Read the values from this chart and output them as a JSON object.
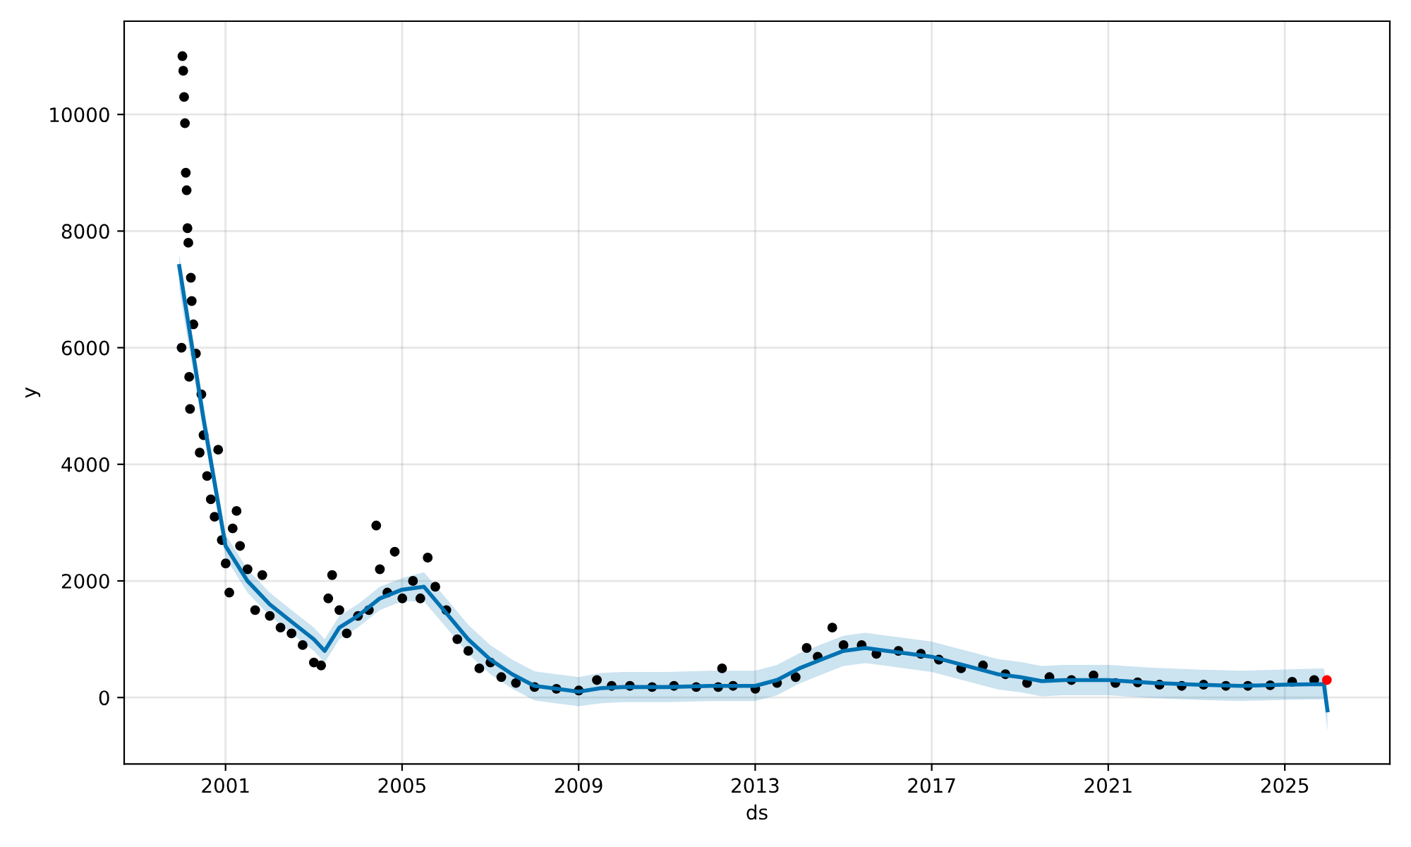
{
  "chart_data": {
    "type": "line",
    "xlabel": "ds",
    "ylabel": "y",
    "grid": true,
    "xlim": [
      "1998-09-15",
      "2027-05-20"
    ],
    "ylim": [
      -1140,
      11600
    ],
    "xticks": [
      {
        "value": "2001-01-01",
        "label": "2001"
      },
      {
        "value": "2005-01-01",
        "label": "2005"
      },
      {
        "value": "2009-01-01",
        "label": "2009"
      },
      {
        "value": "2013-01-01",
        "label": "2013"
      },
      {
        "value": "2017-01-01",
        "label": "2017"
      },
      {
        "value": "2021-01-01",
        "label": "2021"
      },
      {
        "value": "2025-01-01",
        "label": "2025"
      }
    ],
    "yticks": [
      0,
      2000,
      4000,
      6000,
      8000,
      10000
    ],
    "series": [
      {
        "type": "scatter",
        "marker": "circle",
        "color": "#000000",
        "x": [
          "2000-01-03",
          "2000-01-10",
          "2000-01-17",
          "2000-01-24",
          "2000-01-31",
          "2000-02-07",
          "2000-02-14",
          "2000-02-21",
          "2000-02-28",
          "2000-03-06",
          "2000-03-13",
          "2000-03-20",
          "2000-03-27",
          "2000-04-10",
          "2000-05-01",
          "2000-06-01",
          "2000-06-15",
          "2000-07-03",
          "2000-08-01",
          "2000-09-01",
          "2000-10-02",
          "2000-11-01",
          "2000-12-01",
          "2001-01-02",
          "2001-02-01",
          "2001-03-01",
          "2001-04-02",
          "2001-05-01",
          "2001-07-02",
          "2001-09-03",
          "2001-11-01",
          "2002-01-02",
          "2002-04-01",
          "2002-07-01",
          "2002-10-01",
          "2003-01-02",
          "2003-03-03",
          "2003-05-01",
          "2003-06-02",
          "2003-08-01",
          "2003-10-01",
          "2004-01-02",
          "2004-04-01",
          "2004-06-01",
          "2004-07-01",
          "2004-09-01",
          "2004-11-01",
          "2005-01-03",
          "2005-04-01",
          "2005-06-01",
          "2005-08-01",
          "2005-10-03",
          "2006-01-02",
          "2006-04-03",
          "2006-07-03",
          "2006-10-02",
          "2007-01-02",
          "2007-04-02",
          "2007-08-01",
          "2008-01-02",
          "2008-07-01",
          "2009-01-02",
          "2009-06-01",
          "2009-10-01",
          "2010-03-01",
          "2010-09-01",
          "2011-03-01",
          "2011-09-01",
          "2012-03-01",
          "2012-04-02",
          "2012-07-02",
          "2013-01-02",
          "2013-07-01",
          "2013-12-02",
          "2014-03-03",
          "2014-06-02",
          "2014-10-01",
          "2015-01-02",
          "2015-06-01",
          "2015-10-01",
          "2016-04-01",
          "2016-10-03",
          "2017-03-01",
          "2017-09-01",
          "2018-03-01",
          "2018-09-03",
          "2019-03-01",
          "2019-09-02",
          "2020-03-02",
          "2020-09-01",
          "2021-03-01",
          "2021-09-01",
          "2022-03-01",
          "2022-09-01",
          "2023-03-01",
          "2023-09-01",
          "2024-03-01",
          "2024-09-02",
          "2025-03-03",
          "2025-09-01"
        ],
        "values": [
          6000,
          11000,
          10750,
          10300,
          9850,
          9000,
          8700,
          8050,
          7800,
          5500,
          4950,
          7200,
          6800,
          6400,
          5900,
          4200,
          5200,
          4500,
          3800,
          3400,
          3100,
          4250,
          2700,
          2300,
          1800,
          2900,
          3200,
          2600,
          2200,
          1500,
          2100,
          1400,
          1200,
          1100,
          900,
          600,
          550,
          1700,
          2100,
          1500,
          1100,
          1400,
          1500,
          2950,
          2200,
          1800,
          2500,
          1700,
          2000,
          1700,
          2400,
          1900,
          1500,
          1000,
          800,
          500,
          600,
          350,
          250,
          180,
          150,
          120,
          300,
          200,
          200,
          180,
          200,
          180,
          180,
          500,
          200,
          150,
          250,
          350,
          850,
          700,
          1200,
          900,
          900,
          750,
          800,
          750,
          650,
          500,
          550,
          400,
          250,
          350,
          300,
          380,
          250,
          260,
          220,
          200,
          220,
          200,
          200,
          210,
          270,
          300
        ]
      },
      {
        "color": "#0072b2",
        "x": [
          "1999-12-15",
          "2000-07-01",
          "2001-01-01",
          "2001-07-01",
          "2002-01-01",
          "2002-07-01",
          "2003-01-01",
          "2003-04-01",
          "2003-08-01",
          "2004-01-01",
          "2004-07-01",
          "2005-01-01",
          "2005-07-01",
          "2006-01-01",
          "2006-07-01",
          "2007-01-01",
          "2007-07-01",
          "2008-01-01",
          "2008-07-01",
          "2009-01-01",
          "2009-07-01",
          "2010-01-01",
          "2011-01-01",
          "2012-01-01",
          "2013-01-01",
          "2013-07-01",
          "2014-01-01",
          "2014-07-01",
          "2015-01-01",
          "2015-07-01",
          "2016-01-01",
          "2016-07-01",
          "2017-01-01",
          "2017-07-01",
          "2018-01-01",
          "2018-07-01",
          "2019-01-01",
          "2019-07-01",
          "2020-01-01",
          "2021-01-01",
          "2022-01-01",
          "2023-01-01",
          "2024-01-01",
          "2025-01-01",
          "2025-11-20",
          "2025-12-20"
        ],
        "values": [
          7400,
          4800,
          2600,
          2000,
          1600,
          1300,
          1000,
          800,
          1200,
          1400,
          1700,
          1850,
          1900,
          1450,
          1000,
          650,
          400,
          200,
          150,
          100,
          160,
          180,
          180,
          200,
          200,
          300,
          500,
          650,
          800,
          850,
          800,
          750,
          700,
          600,
          500,
          400,
          350,
          280,
          300,
          300,
          250,
          220,
          200,
          220,
          230,
          -220
        ],
        "lower": [
          7000,
          4550,
          2400,
          1800,
          1400,
          1100,
          800,
          600,
          1000,
          1200,
          1500,
          1650,
          1650,
          1200,
          750,
          400,
          150,
          -50,
          -100,
          -150,
          -100,
          -80,
          -80,
          -60,
          -60,
          40,
          240,
          390,
          540,
          590,
          540,
          490,
          440,
          340,
          240,
          140,
          90,
          20,
          40,
          40,
          -10,
          -40,
          -60,
          -40,
          -30,
          -580
        ],
        "upper": [
          7600,
          5050,
          2800,
          2200,
          1800,
          1500,
          1200,
          1000,
          1400,
          1600,
          1900,
          2050,
          2150,
          1700,
          1250,
          900,
          650,
          450,
          400,
          350,
          420,
          440,
          440,
          460,
          460,
          560,
          760,
          910,
          1060,
          1110,
          1060,
          1010,
          960,
          860,
          760,
          660,
          610,
          540,
          560,
          560,
          510,
          480,
          460,
          480,
          500,
          150
        ]
      },
      {
        "type": "scatter",
        "marker": "circle",
        "color": "#ff0000",
        "x": [
          "2025-12-15"
        ],
        "values": [
          300
        ]
      }
    ]
  }
}
